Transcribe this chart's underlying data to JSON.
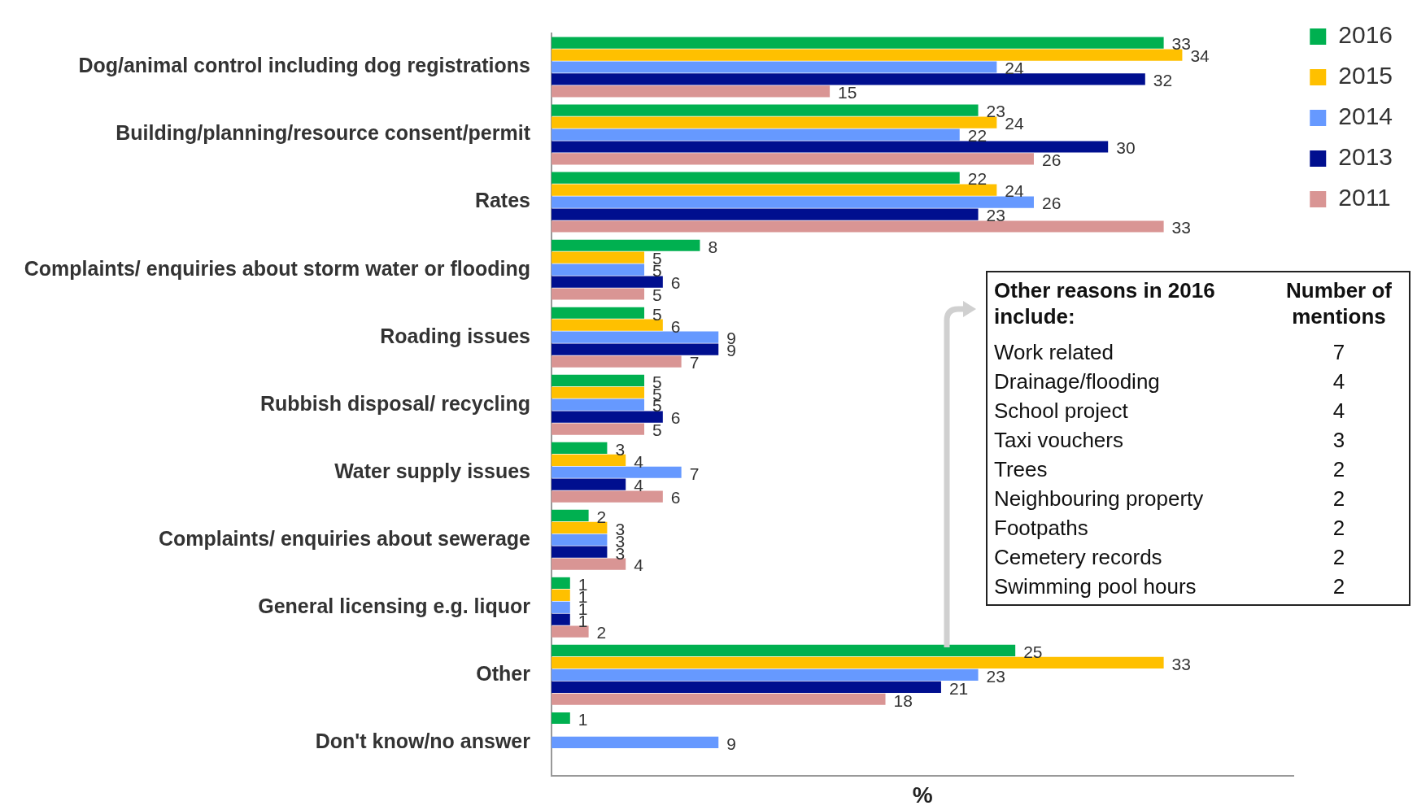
{
  "chart_data": {
    "type": "bar",
    "orientation": "horizontal",
    "xlabel": "%",
    "categories": [
      "Dog/animal control including dog registrations",
      "Building/planning/resource consent/permit",
      "Rates",
      "Complaints/ enquiries about storm water or flooding",
      "Roading issues",
      "Rubbish disposal/ recycling",
      "Water supply issues",
      "Complaints/ enquiries about sewerage",
      "General licensing e.g. liquor",
      "Other",
      "Don't know/no answer"
    ],
    "series": [
      {
        "name": "2016",
        "color": "#00b050",
        "values": [
          33,
          23,
          22,
          8,
          5,
          5,
          3,
          2,
          1,
          25,
          1
        ]
      },
      {
        "name": "2015",
        "color": "#ffc000",
        "values": [
          34,
          24,
          24,
          5,
          6,
          5,
          4,
          3,
          1,
          33,
          null
        ]
      },
      {
        "name": "2014",
        "color": "#6699ff",
        "values": [
          24,
          22,
          26,
          5,
          9,
          5,
          7,
          3,
          1,
          23,
          9
        ]
      },
      {
        "name": "2013",
        "color": "#000f8f",
        "values": [
          32,
          30,
          23,
          6,
          9,
          6,
          4,
          3,
          1,
          21,
          null
        ]
      },
      {
        "name": "2011",
        "color": "#d99594",
        "values": [
          15,
          26,
          33,
          5,
          7,
          5,
          6,
          4,
          2,
          18,
          null
        ]
      }
    ],
    "xlim": [
      0,
      40
    ],
    "tick_labels": "y",
    "grid": false,
    "legend": "top right",
    "data_labels": true,
    "annotations": [
      "Other reasons in 2016 include:",
      "Number of mentions",
      "Work related",
      "7",
      "Drainage/flooding",
      "4",
      "School project",
      "4",
      "Taxi vouchers",
      "3",
      "Trees",
      "2",
      "Neighbouring property",
      "2",
      "Footpaths",
      "2",
      "Cemetery records",
      "2",
      "Swimming pool hours",
      "2"
    ]
  }
}
